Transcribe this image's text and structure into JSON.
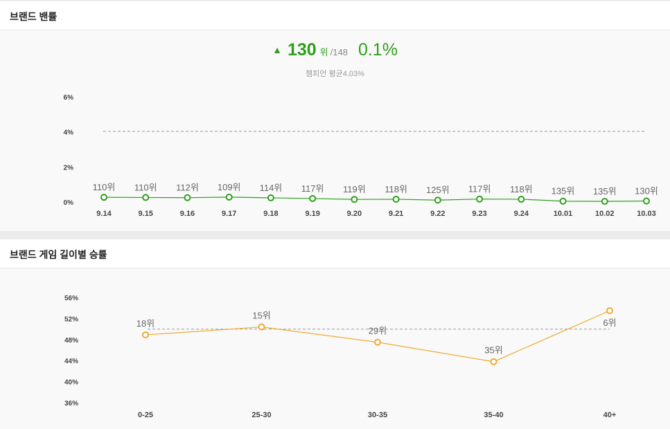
{
  "panel1": {
    "title": "브랜드 밴률",
    "rank_arrow": "▲",
    "rank": "130",
    "rank_unit": "위",
    "rank_total": "/148",
    "rate": "0.1%",
    "average_note": "챔피언 평균4.03%",
    "chart_data": {
      "type": "line",
      "categories": [
        "9.14",
        "9.15",
        "9.16",
        "9.17",
        "9.18",
        "9.19",
        "9.20",
        "9.21",
        "9.22",
        "9.23",
        "9.24",
        "10.01",
        "10.02",
        "10.03"
      ],
      "series": [
        {
          "values": [
            0.27,
            0.26,
            0.25,
            0.28,
            0.24,
            0.2,
            0.15,
            0.16,
            0.11,
            0.17,
            0.16,
            0.05,
            0.04,
            0.06
          ],
          "labels": [
            "110위",
            "110위",
            "112위",
            "109위",
            "114위",
            "117위",
            "119위",
            "118위",
            "125위",
            "117위",
            "118위",
            "135위",
            "135위",
            "130위"
          ],
          "color": "#2e9e1b"
        }
      ],
      "reference_line": 4.03,
      "reference_color": "#999999",
      "y_ticks": [
        "0%",
        "2%",
        "4%",
        "6%"
      ],
      "ylim": [
        0,
        6
      ],
      "grid": false
    }
  },
  "panel2": {
    "title": "브랜드 게임 길이별 승률",
    "chart_data": {
      "type": "line",
      "categories": [
        "0-25",
        "25-30",
        "30-35",
        "35-40",
        "40+"
      ],
      "series": [
        {
          "values": [
            48.9,
            50.4,
            47.5,
            43.8,
            53.5
          ],
          "labels": [
            "18위",
            "15위",
            "29위",
            "35위",
            "6위"
          ],
          "color": "#f0a830"
        }
      ],
      "reference_line": 50,
      "reference_color": "#999999",
      "y_ticks": [
        "36%",
        "40%",
        "44%",
        "48%",
        "52%",
        "56%"
      ],
      "ylim": [
        36,
        56
      ],
      "grid": false
    }
  }
}
